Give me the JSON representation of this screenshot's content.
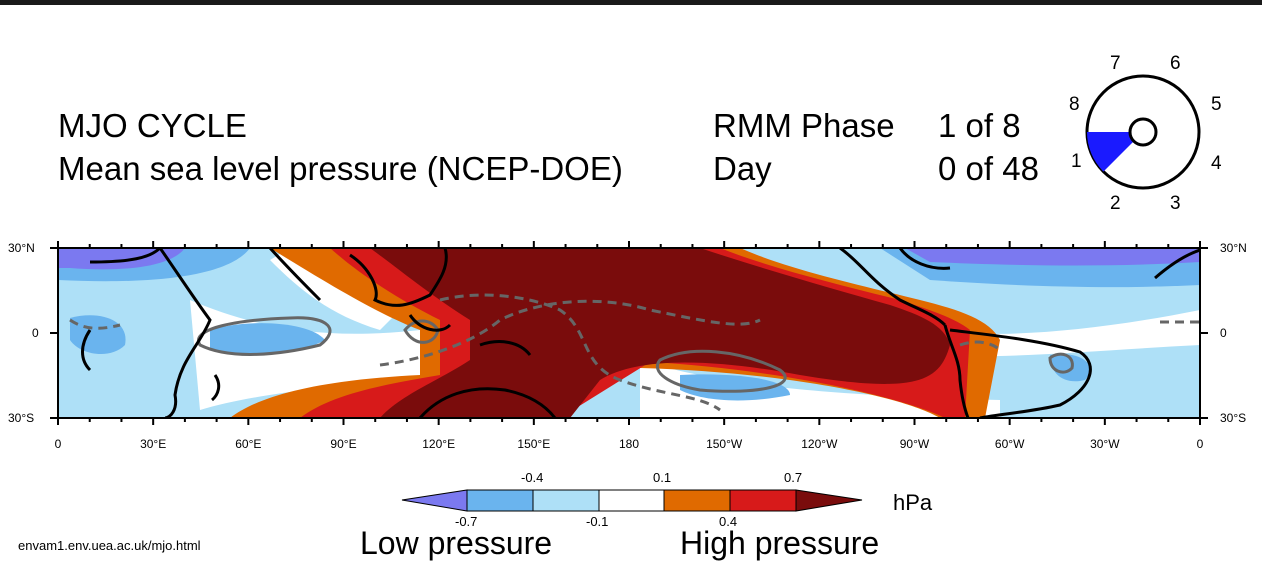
{
  "header": {
    "title_line1": "MJO CYCLE",
    "title_line2": "Mean sea level pressure (NCEP-DOE)",
    "phase_label": "RMM Phase",
    "phase_value": "1  of 8",
    "day_label": "Day",
    "day_value": "0  of 48"
  },
  "phase_dial": {
    "current_phase": 1,
    "total_phases": 8,
    "numbers": [
      "1",
      "2",
      "3",
      "4",
      "5",
      "6",
      "7",
      "8"
    ],
    "fill_color": "#1a1aff"
  },
  "map": {
    "region": "tropical belt 30°S–30°N, 0–360°",
    "x_ticks": [
      "0",
      "30°E",
      "60°E",
      "90°E",
      "120°E",
      "150°E",
      "180",
      "150°W",
      "120°W",
      "90°W",
      "60°W",
      "30°W",
      "0"
    ],
    "y_ticks_left": [
      "30°N",
      "0",
      "30°S"
    ],
    "y_ticks_right": [
      "30°N",
      "0",
      "30°S"
    ]
  },
  "colorbar": {
    "unit": "hPa",
    "ticks_top": [
      "-0.4",
      "0.1",
      "0.7"
    ],
    "ticks_bottom": [
      "-0.7",
      "-0.1",
      "0.4"
    ],
    "colors": [
      "#7b79f0",
      "#6ab4ee",
      "#aee0f7",
      "#ffffff",
      "#e06a00",
      "#d71a1a",
      "#7a0c0c"
    ]
  },
  "footer": {
    "url": "envam1.env.uea.ac.uk/mjo.html",
    "low_label": "Low pressure",
    "high_label": "High pressure"
  }
}
